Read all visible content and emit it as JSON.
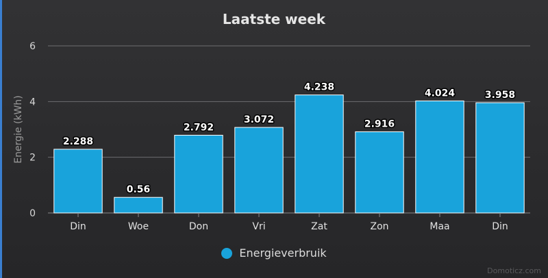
{
  "chart_data": {
    "type": "bar",
    "title": "Laatste week",
    "ylabel": "Energie (kWh)",
    "xlabel": "",
    "ylim": [
      0,
      6
    ],
    "yticks": [
      0,
      2,
      4,
      6
    ],
    "categories": [
      "Din",
      "Woe",
      "Don",
      "Vri",
      "Zat",
      "Zon",
      "Maa",
      "Din"
    ],
    "series": [
      {
        "name": "Energieverbruik",
        "values": [
          2.288,
          0.56,
          2.792,
          3.072,
          4.238,
          2.916,
          4.024,
          3.958
        ],
        "labels": [
          "2.288",
          "0.56",
          "2.792",
          "3.072",
          "4.238",
          "2.916",
          "4.024",
          "3.958"
        ]
      }
    ],
    "colors": {
      "bar": "#19a3db",
      "bar_border": "#ffffff",
      "grid": "#6e6e70"
    },
    "grid": true,
    "legend": "bottom-center"
  },
  "credit": "Domoticz.com"
}
